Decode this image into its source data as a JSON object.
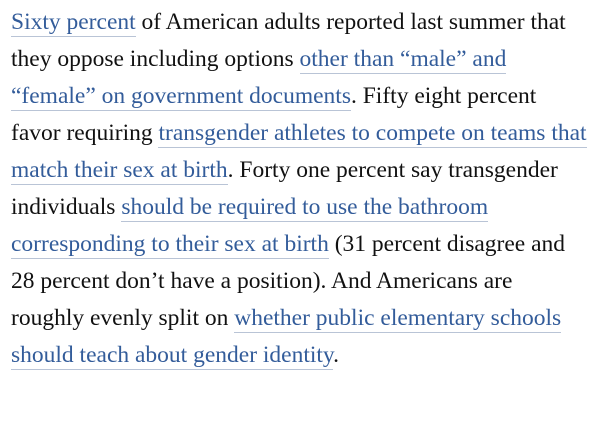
{
  "article": {
    "paragraph": {
      "segments": [
        {
          "type": "link",
          "text": "Sixty percent"
        },
        {
          "type": "text",
          "text": " of American adults reported last summer that they oppose including options "
        },
        {
          "type": "link",
          "text": "other than “male” and “female” on government documents"
        },
        {
          "type": "text",
          "text": ". Fifty eight percent favor requiring "
        },
        {
          "type": "link",
          "text": "transgender athletes to compete on teams that match their sex at birth"
        },
        {
          "type": "text",
          "text": ". Forty one percent say transgender individuals "
        },
        {
          "type": "link",
          "text": "should be required to use the bathroom corresponding to their sex at birth"
        },
        {
          "type": "text",
          "text": " (31 percent disagree and 28 percent don’t have a position). And Americans are roughly evenly split on "
        },
        {
          "type": "link",
          "text": "whether public elementary schools should teach about gender identity"
        },
        {
          "type": "text",
          "text": "."
        }
      ]
    }
  },
  "colors": {
    "text": "#111111",
    "link": "#335c9a",
    "link_underline": "#b9c4d6",
    "background": "#ffffff"
  }
}
